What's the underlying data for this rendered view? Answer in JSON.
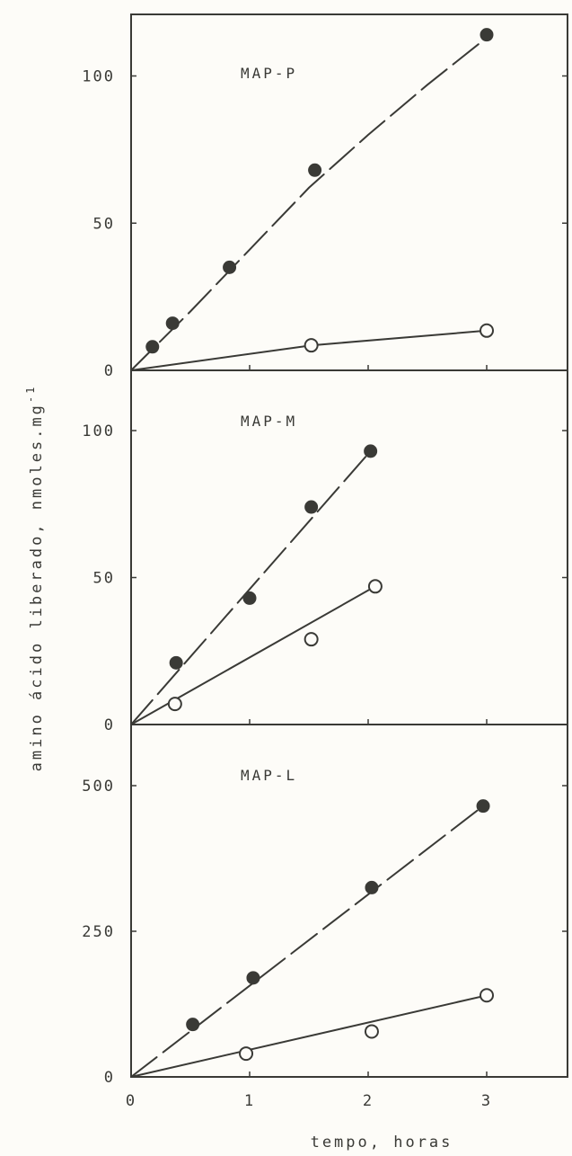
{
  "chart_data": [
    {
      "type": "scatter",
      "panel_label": "MAP-P",
      "ylim": [
        0,
        120
      ],
      "xlim": [
        0,
        3.7
      ],
      "yticks": [
        0,
        50,
        100
      ],
      "series": [
        {
          "marker": "filled",
          "x": [
            0.18,
            0.35,
            0.83,
            1.55,
            3.0
          ],
          "y": [
            8,
            16,
            35,
            68,
            114
          ]
        },
        {
          "marker": "open",
          "x": [
            1.52,
            3.0
          ],
          "y": [
            8.5,
            13.5
          ]
        }
      ],
      "fits": [
        {
          "marker": "filled",
          "dashed": true,
          "points": [
            [
              0,
              0
            ],
            [
              0.5,
              20
            ],
            [
              1,
              41
            ],
            [
              1.5,
              62
            ],
            [
              2,
              80
            ],
            [
              2.5,
              97
            ],
            [
              3,
              113
            ]
          ]
        },
        {
          "marker": "open",
          "dashed": false,
          "points": [
            [
              0,
              0
            ],
            [
              1.52,
              8.5
            ],
            [
              3.0,
              13.5
            ]
          ]
        }
      ]
    },
    {
      "type": "scatter",
      "panel_label": "MAP-M",
      "ylim": [
        0,
        100
      ],
      "xlim": [
        0,
        3.7
      ],
      "yticks": [
        0,
        50,
        100
      ],
      "series": [
        {
          "marker": "filled",
          "x": [
            0.38,
            1.0,
            1.52,
            2.02
          ],
          "y": [
            21,
            43,
            74,
            93
          ]
        },
        {
          "marker": "open",
          "x": [
            0.37,
            1.52,
            2.06
          ],
          "y": [
            7,
            29,
            47
          ]
        }
      ],
      "fits": [
        {
          "marker": "filled",
          "dashed": true,
          "points": [
            [
              0,
              0
            ],
            [
              2.02,
              93
            ]
          ]
        },
        {
          "marker": "open",
          "dashed": false,
          "points": [
            [
              0,
              0
            ],
            [
              2.06,
              47
            ]
          ]
        }
      ]
    },
    {
      "type": "scatter",
      "panel_label": "MAP-L",
      "ylim": [
        0,
        500
      ],
      "xlim": [
        0,
        3.7
      ],
      "yticks": [
        0,
        250,
        500
      ],
      "xticks": [
        0,
        1,
        2,
        3
      ],
      "series": [
        {
          "marker": "filled",
          "x": [
            0.52,
            1.03,
            2.03,
            2.97
          ],
          "y": [
            90,
            170,
            325,
            465
          ]
        },
        {
          "marker": "open",
          "x": [
            0.97,
            2.03,
            3.0
          ],
          "y": [
            40,
            78,
            140
          ]
        }
      ],
      "fits": [
        {
          "marker": "filled",
          "dashed": true,
          "points": [
            [
              0,
              0
            ],
            [
              2.97,
              465
            ]
          ]
        },
        {
          "marker": "open",
          "dashed": false,
          "points": [
            [
              0,
              0
            ],
            [
              3.0,
              140
            ]
          ]
        }
      ]
    }
  ],
  "xlabel": "tempo,  horas",
  "ylabel": "amino ácido liberado,  nmoles.mg",
  "ylabel_superscript": "-1",
  "colors": {
    "ink": "#3a3a36",
    "background": "#fdfcf8"
  }
}
